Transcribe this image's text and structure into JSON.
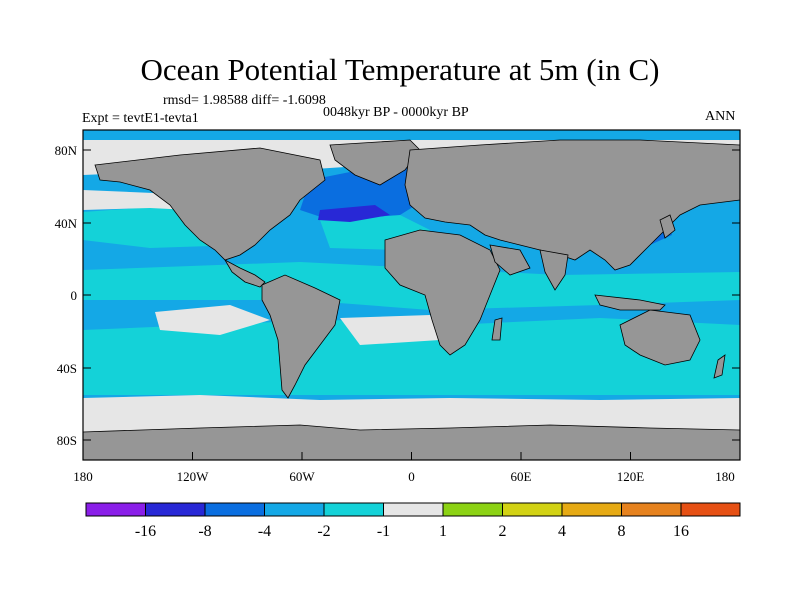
{
  "title": "Ocean Potential Temperature at 5m (in C)",
  "stats_line": "rmsd= 1.98588  diff= -1.6098",
  "expt_line": "Expt = tevtE1-tevta1",
  "period_line": "0048kyr BP - 0000kyr BP",
  "season": "ANN",
  "y_ticks": [
    "80N",
    "40N",
    "0",
    "40S",
    "80S"
  ],
  "x_ticks": [
    "180",
    "120W",
    "60W",
    "0",
    "60E",
    "120E",
    "180"
  ],
  "colorbar": {
    "colors": [
      "#8a1ee8",
      "#2828d6",
      "#0a6ee0",
      "#14a8e6",
      "#14d2d8",
      "#e6e6e6",
      "#8cd214",
      "#d2d214",
      "#e6aa14",
      "#e6821e",
      "#e65014",
      "#e62814"
    ],
    "labels": [
      "-16",
      "-8",
      "-4",
      "-2",
      "-1",
      "1",
      "2",
      "4",
      "8",
      "16"
    ]
  },
  "colors": {
    "land": "#969696",
    "ocean_base": "#14a8e6",
    "ocean_light": "#14d2d8",
    "polar": "#e6e6e6",
    "deep_blue": "#2828d6",
    "mid_blue": "#0a6ee0"
  }
}
